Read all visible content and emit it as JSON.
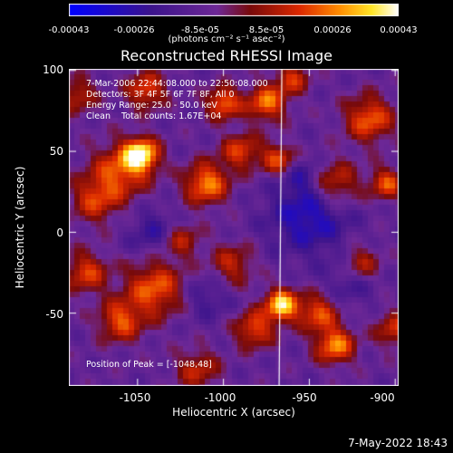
{
  "colorbar": {
    "ticks": [
      "-0.00043",
      "-0.00026",
      "-8.5e-05",
      "8.5e-05",
      "0.00026",
      "0.00043"
    ],
    "units": "(photons cm⁻² s⁻¹ asec⁻²)"
  },
  "info": {
    "time": "7-Mar-2006 22:44:08.000 to 22:50:08.000",
    "detectors": "Detectors: 3F 4F 5F 6F 7F 8F, All 0",
    "energy": "Energy Range: 25.0 - 50.0 keV",
    "clean": "Clean    Total counts: 1.67E+04",
    "peak": "Position of Peak = [-1048,48]"
  },
  "footer": "7-May-2022 18:43",
  "chart_data": {
    "type": "heatmap",
    "title": "Reconstructed RHESSI Image",
    "xlabel": "Heliocentric X (arcsec)",
    "ylabel": "Heliocentric Y (arcsec)",
    "xlim": [
      -1090,
      -898
    ],
    "ylim": [
      -95,
      101
    ],
    "x_ticks": [
      "-1050",
      "-1000",
      "-950",
      "-900"
    ],
    "y_ticks": [
      "100",
      "50",
      "0",
      "-50"
    ],
    "colorscale": "blue-purple-red-yellow-white",
    "value_range": [
      -0.00043,
      0.00043
    ],
    "peak_position": [
      -1048,
      48
    ],
    "vertical_line_x": -966
  }
}
